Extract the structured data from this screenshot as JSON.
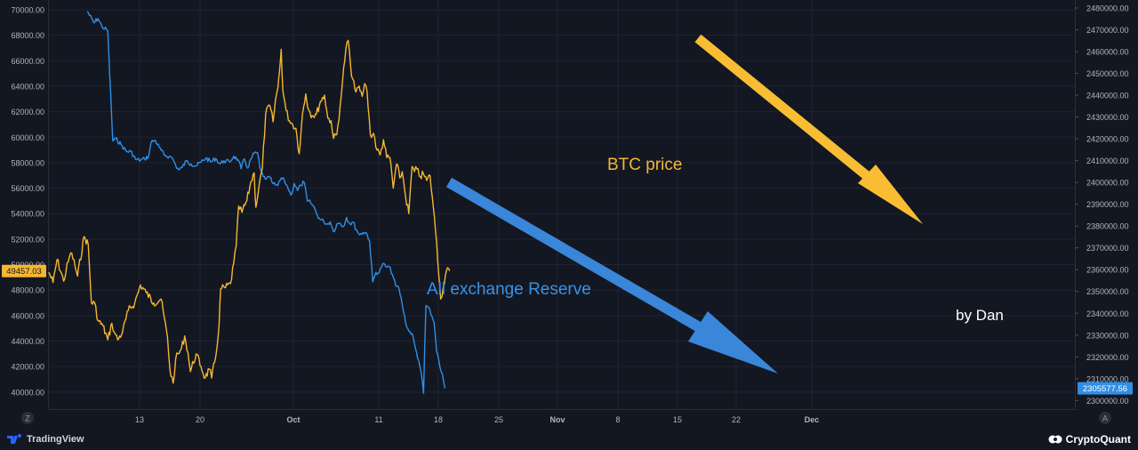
{
  "chart_data": {
    "type": "line",
    "title": "",
    "x_tick_labels": [
      "13",
      "20",
      "Oct",
      "11",
      "18",
      "25",
      "Nov",
      "8",
      "15",
      "22",
      "Dec"
    ],
    "left_axis": {
      "ylim": [
        39500,
        70000
      ],
      "ticks": [
        "40000.00",
        "42000.00",
        "44000.00",
        "46000.00",
        "48000.00",
        "50000.00",
        "52000.00",
        "54000.00",
        "56000.00",
        "58000.00",
        "60000.00",
        "62000.00",
        "64000.00",
        "66000.00",
        "68000.00",
        "70000.00"
      ],
      "current_value_label": "49457.03",
      "color": "#f5b731"
    },
    "right_axis": {
      "ylim": [
        2298500,
        2480000
      ],
      "ticks": [
        "2300000.00",
        "2310000.00",
        "2320000.00",
        "2330000.00",
        "2340000.00",
        "2350000.00",
        "2360000.00",
        "2370000.00",
        "2380000.00",
        "2390000.00",
        "2400000.00",
        "2410000.00",
        "2420000.00",
        "2430000.00",
        "2440000.00",
        "2450000.00",
        "2460000.00",
        "2470000.00",
        "2480000.00"
      ],
      "current_value_label": "2305577.56",
      "color": "#2f8fe6"
    },
    "series": [
      {
        "name": "BTC price",
        "axis": "left",
        "color": "#f5b731",
        "points": [
          [
            0,
            49400
          ],
          [
            5,
            48600
          ],
          [
            10,
            50400
          ],
          [
            18,
            48700
          ],
          [
            25,
            50600
          ],
          [
            28,
            50900
          ],
          [
            35,
            49100
          ],
          [
            43,
            52200
          ],
          [
            48,
            51600
          ],
          [
            52,
            47000
          ],
          [
            56,
            47000
          ],
          [
            60,
            45600
          ],
          [
            66,
            45200
          ],
          [
            72,
            44100
          ],
          [
            77,
            45400
          ],
          [
            80,
            44700
          ],
          [
            84,
            44100
          ],
          [
            90,
            44700
          ],
          [
            97,
            46400
          ],
          [
            105,
            47000
          ],
          [
            112,
            48400
          ],
          [
            119,
            47800
          ],
          [
            128,
            47000
          ],
          [
            137,
            47300
          ],
          [
            145,
            44300
          ],
          [
            148,
            41700
          ],
          [
            152,
            40700
          ],
          [
            155,
            42600
          ],
          [
            162,
            43400
          ],
          [
            166,
            44400
          ],
          [
            170,
            43100
          ],
          [
            173,
            41600
          ],
          [
            180,
            43000
          ],
          [
            186,
            42000
          ],
          [
            191,
            41100
          ],
          [
            196,
            41800
          ],
          [
            199,
            41100
          ],
          [
            204,
            42800
          ],
          [
            208,
            45200
          ],
          [
            210,
            48100
          ],
          [
            216,
            48200
          ],
          [
            222,
            48500
          ],
          [
            226,
            50100
          ],
          [
            229,
            51500
          ],
          [
            232,
            54600
          ],
          [
            236,
            54100
          ],
          [
            242,
            55000
          ],
          [
            247,
            56500
          ],
          [
            251,
            57200
          ],
          [
            253,
            54500
          ],
          [
            257,
            56200
          ],
          [
            261,
            57600
          ],
          [
            265,
            61800
          ],
          [
            270,
            62500
          ],
          [
            274,
            61200
          ],
          [
            277,
            62900
          ],
          [
            280,
            63900
          ],
          [
            282,
            65200
          ],
          [
            284,
            66900
          ],
          [
            286,
            63700
          ],
          [
            290,
            62100
          ],
          [
            294,
            61300
          ],
          [
            298,
            61000
          ],
          [
            302,
            60700
          ],
          [
            306,
            58700
          ],
          [
            310,
            61800
          ],
          [
            314,
            63400
          ],
          [
            318,
            62100
          ],
          [
            322,
            61700
          ],
          [
            327,
            61800
          ],
          [
            332,
            62800
          ],
          [
            337,
            63300
          ],
          [
            341,
            61500
          ],
          [
            345,
            61300
          ],
          [
            348,
            59900
          ],
          [
            352,
            60200
          ],
          [
            356,
            62400
          ],
          [
            359,
            64400
          ],
          [
            363,
            66900
          ],
          [
            366,
            67600
          ],
          [
            370,
            64800
          ],
          [
            374,
            63800
          ],
          [
            378,
            63900
          ],
          [
            383,
            63200
          ],
          [
            386,
            64200
          ],
          [
            389,
            63600
          ],
          [
            393,
            60200
          ],
          [
            397,
            60300
          ],
          [
            401,
            59000
          ],
          [
            405,
            58600
          ],
          [
            409,
            59800
          ],
          [
            413,
            58400
          ],
          [
            417,
            58400
          ],
          [
            421,
            56000
          ],
          [
            425,
            57900
          ],
          [
            429,
            56800
          ],
          [
            432,
            57300
          ],
          [
            436,
            55400
          ],
          [
            440,
            54000
          ],
          [
            444,
            57700
          ],
          [
            447,
            57300
          ],
          [
            450,
            57500
          ],
          [
            454,
            56900
          ],
          [
            458,
            57100
          ],
          [
            462,
            56600
          ],
          [
            466,
            57000
          ],
          [
            470,
            54500
          ],
          [
            474,
            51800
          ],
          [
            479,
            47300
          ],
          [
            482,
            48200
          ],
          [
            486,
            49500
          ],
          [
            490,
            49500
          ]
        ]
      },
      {
        "name": "All exchange Reserve",
        "axis": "right",
        "color": "#2f8fe6",
        "points": [
          [
            47,
            2478500
          ],
          [
            55,
            2473200
          ],
          [
            60,
            2475200
          ],
          [
            65,
            2471400
          ],
          [
            72,
            2469600
          ],
          [
            78,
            2419100
          ],
          [
            82,
            2420000
          ],
          [
            88,
            2417500
          ],
          [
            95,
            2414100
          ],
          [
            100,
            2414300
          ],
          [
            106,
            2410600
          ],
          [
            112,
            2410200
          ],
          [
            117,
            2410800
          ],
          [
            122,
            2412000
          ],
          [
            125,
            2418500
          ],
          [
            130,
            2419300
          ],
          [
            135,
            2416000
          ],
          [
            141,
            2412500
          ],
          [
            147,
            2411900
          ],
          [
            151,
            2411200
          ],
          [
            155,
            2407800
          ],
          [
            159,
            2405700
          ],
          [
            163,
            2407000
          ],
          [
            168,
            2409800
          ],
          [
            174,
            2408500
          ],
          [
            180,
            2407600
          ],
          [
            186,
            2409300
          ],
          [
            192,
            2411200
          ],
          [
            198,
            2409400
          ],
          [
            204,
            2411000
          ],
          [
            209,
            2408500
          ],
          [
            214,
            2409900
          ],
          [
            221,
            2409400
          ],
          [
            226,
            2412000
          ],
          [
            231,
            2410500
          ],
          [
            235,
            2406300
          ],
          [
            239,
            2410800
          ],
          [
            243,
            2406600
          ],
          [
            247,
            2410700
          ],
          [
            251,
            2413400
          ],
          [
            255,
            2413700
          ],
          [
            258,
            2406500
          ],
          [
            262,
            2402700
          ],
          [
            266,
            2401700
          ],
          [
            270,
            2402300
          ],
          [
            274,
            2399400
          ],
          [
            277,
            2398800
          ],
          [
            280,
            2398600
          ],
          [
            284,
            2402000
          ],
          [
            288,
            2400700
          ],
          [
            292,
            2397800
          ],
          [
            296,
            2394200
          ],
          [
            300,
            2399500
          ],
          [
            304,
            2396300
          ],
          [
            308,
            2398700
          ],
          [
            312,
            2400200
          ],
          [
            316,
            2391400
          ],
          [
            320,
            2390800
          ],
          [
            324,
            2388800
          ],
          [
            328,
            2385100
          ],
          [
            332,
            2382900
          ],
          [
            336,
            2382200
          ],
          [
            340,
            2380800
          ],
          [
            344,
            2382000
          ],
          [
            348,
            2377400
          ],
          [
            352,
            2380900
          ],
          [
            356,
            2381300
          ],
          [
            360,
            2379800
          ],
          [
            364,
            2383900
          ],
          [
            368,
            2381000
          ],
          [
            372,
            2381800
          ],
          [
            376,
            2378300
          ],
          [
            380,
            2376000
          ],
          [
            384,
            2377100
          ],
          [
            388,
            2376900
          ],
          [
            392,
            2373400
          ],
          [
            396,
            2354400
          ],
          [
            400,
            2358800
          ],
          [
            404,
            2358700
          ],
          [
            408,
            2362700
          ],
          [
            412,
            2361300
          ],
          [
            416,
            2361300
          ],
          [
            420,
            2357900
          ],
          [
            424,
            2352500
          ],
          [
            428,
            2351500
          ],
          [
            432,
            2344000
          ],
          [
            436,
            2336000
          ],
          [
            440,
            2331900
          ],
          [
            444,
            2330700
          ],
          [
            448,
            2324000
          ],
          [
            452,
            2318500
          ],
          [
            455,
            2313200
          ],
          [
            458,
            2303300
          ],
          [
            461,
            2343500
          ],
          [
            464,
            2342800
          ],
          [
            467,
            2339700
          ],
          [
            471,
            2335700
          ],
          [
            474,
            2322500
          ],
          [
            478,
            2315400
          ],
          [
            481,
            2312200
          ],
          [
            484,
            2305600
          ]
        ]
      }
    ]
  },
  "annotations": {
    "btc_label": "BTC price",
    "reserve_label": "All exchange Reserve",
    "author_label": "by Dan"
  },
  "axis_buttons": {
    "left": "Z",
    "right": "A"
  },
  "footer": {
    "left_brand": "TradingView",
    "right_brand": "CryptoQuant"
  },
  "colors": {
    "background": "#131722",
    "grid": "#1f2433",
    "btc": "#f5b731",
    "reserve": "#2f8fe6",
    "axis_text": "#b2b5be"
  }
}
